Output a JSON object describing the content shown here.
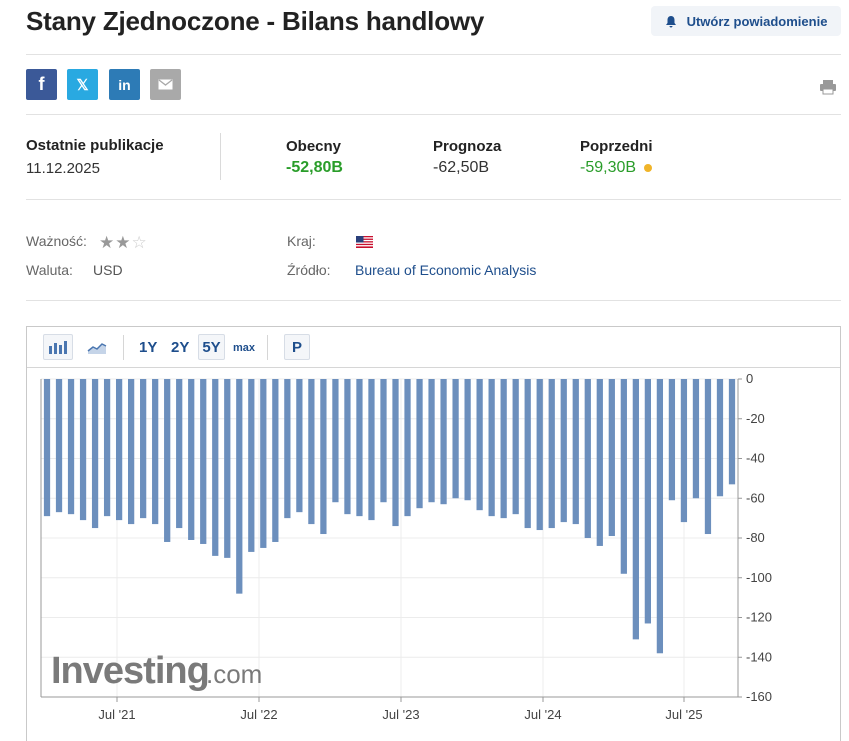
{
  "page": {
    "title": "Stany Zjednoczone - Bilans handlowy",
    "alert_button": "Utwórz powiadomienie"
  },
  "share": {
    "facebook": "f",
    "twitter": "𝕏",
    "linkedin": "in",
    "icons": [
      "facebook-icon",
      "twitter-icon",
      "linkedin-icon",
      "email-icon",
      "print-icon"
    ]
  },
  "release": {
    "latest_label": "Ostatnie publikacje",
    "latest_date": "11.12.2025",
    "actual_label": "Obecny",
    "actual_value": "-52,80B",
    "forecast_label": "Prognoza",
    "forecast_value": "-62,50B",
    "previous_label": "Poprzedni",
    "previous_value": "-59,30B",
    "colors": {
      "actual": "#2a9d2a",
      "previous": "#2a9d2a",
      "revision_dot": "#f0b429"
    }
  },
  "meta": {
    "importance_label": "Ważność:",
    "importance_stars": 2,
    "importance_max": 3,
    "currency_label": "Waluta:",
    "currency_value": "USD",
    "country_label": "Kraj:",
    "country_flag": "us-flag-icon",
    "source_label": "Źródło:",
    "source_value": "Bureau of Economic Analysis"
  },
  "toolbar": {
    "ranges": [
      "1Y",
      "2Y",
      "5Y",
      "max"
    ],
    "active_range": "5Y",
    "p_button": "P"
  },
  "chart_data": {
    "type": "bar",
    "y_axis_position": "right",
    "ylim": [
      -160,
      0
    ],
    "yticks": [
      0,
      -20,
      -40,
      -60,
      -80,
      -100,
      -120,
      -140,
      -160
    ],
    "xtick_labels": [
      "Jul '21",
      "Jul '22",
      "Jul '23",
      "Jul '24",
      "Jul '25"
    ],
    "bar_color": "#6c8fbd",
    "grid": true,
    "watermark": "Investing.com",
    "values": [
      -69,
      -67,
      -68,
      -71,
      -75,
      -69,
      -71,
      -73,
      -70,
      -73,
      -82,
      -75,
      -81,
      -83,
      -89,
      -90,
      -108,
      -87,
      -85,
      -82,
      -70,
      -67,
      -73,
      -78,
      -62,
      -68,
      -69,
      -71,
      -62,
      -74,
      -69,
      -65,
      -62,
      -63,
      -60,
      -61,
      -66,
      -69,
      -70,
      -68,
      -75,
      -76,
      -75,
      -72,
      -73,
      -80,
      -84,
      -79,
      -98,
      -131,
      -123,
      -138,
      -61,
      -72,
      -60,
      -78,
      -59,
      -53
    ]
  }
}
